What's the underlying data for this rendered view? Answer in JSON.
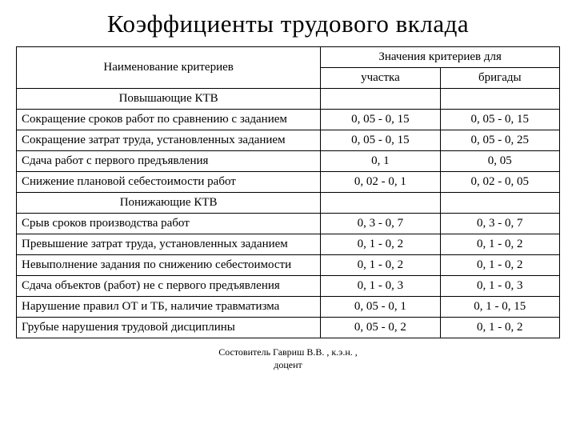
{
  "title": "Коэффициенты трудового вклада",
  "header": {
    "criteria": "Наименование критериев",
    "values": "Значения критериев для",
    "sub1": "участка",
    "sub2": "бригады"
  },
  "section1": "Повышающие КТВ",
  "section2": "Понижающие КТВ",
  "rows_up": [
    {
      "name": "Сокращение сроков работ по сравнению с заданием",
      "v1": "0, 05 - 0, 15",
      "v2": "0, 05 - 0, 15"
    },
    {
      "name": "Сокращение затрат труда, установленных заданием",
      "v1": "0, 05 - 0, 15",
      "v2": "0, 05 - 0, 25"
    },
    {
      "name": "Сдача работ с первого предъявления",
      "v1": "0, 1",
      "v2": "0, 05"
    },
    {
      "name": "Снижение плановой себестоимости работ",
      "v1": "0, 02 - 0, 1",
      "v2": "0, 02 - 0, 05"
    }
  ],
  "rows_down": [
    {
      "name": "Срыв сроков производства работ",
      "v1": "0, 3 - 0, 7",
      "v2": "0, 3 - 0, 7"
    },
    {
      "name": "Превышение затрат труда, установленных заданием",
      "v1": "0, 1 - 0, 2",
      "v2": "0, 1 - 0, 2"
    },
    {
      "name": "Невыполнение задания по снижению себестоимости",
      "v1": "0, 1 - 0, 2",
      "v2": "0, 1 - 0, 2"
    },
    {
      "name": "Сдача объектов (работ) не с первого предъявления",
      "v1": "0, 1 - 0, 3",
      "v2": "0, 1 - 0, 3"
    },
    {
      "name": "Нарушение правил ОТ и ТБ, наличие травматизма",
      "v1": "0, 05 - 0, 1",
      "v2": "0, 1 - 0, 15"
    },
    {
      "name": "Грубые нарушения трудовой дисциплины",
      "v1": "0, 05 - 0, 2",
      "v2": "0, 1 - 0, 2"
    }
  ],
  "footer_l1": "Состовитель Гавриш В.В. , к.э.н. ,",
  "footer_l2": "доцент"
}
